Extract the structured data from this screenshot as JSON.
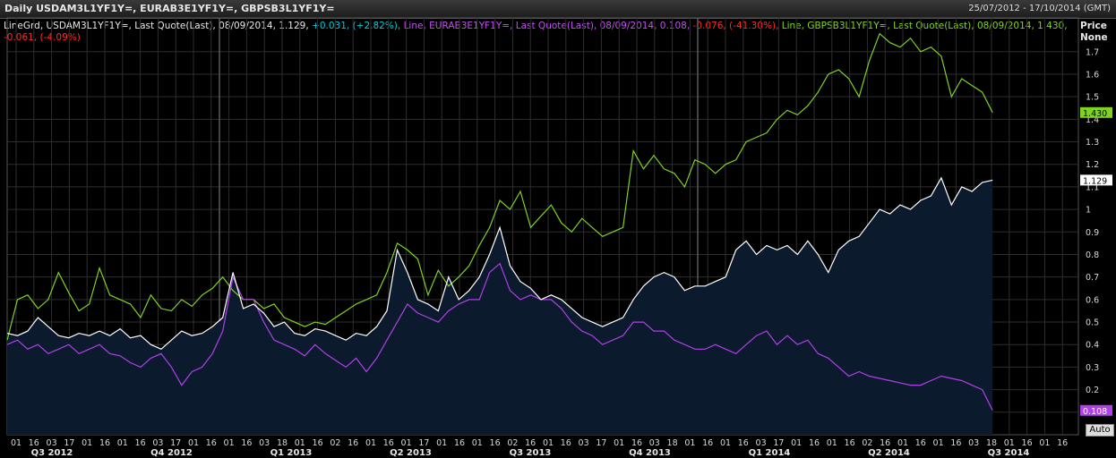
{
  "header": {
    "title": "Daily USDAM3L1YF1Y=, EURAB3E1YF1Y=, GBPSB3L1YF1Y=",
    "date_range": "25/07/2012 - 17/10/2014 (GMT)"
  },
  "legend": {
    "usd": {
      "prefix": "LineGrd, USDAM3L1YF1Y=, Last Quote(Last), 08/09/2014, 1.129, ",
      "chg": "+0.031, (+2.82%), "
    },
    "eur": {
      "prefix": "Line, EURAB3E1YF1Y=, Last Quote(Last), 08/09/2014, 0.108, ",
      "chg": "-0.076, (-41.30%), "
    },
    "gbp": {
      "prefix": "Line, GBPSB3L1YF1Y=, Last Quote(Last), 08/09/2014, 1.430, ",
      "chg": "-0.061, (-4.09%)"
    }
  },
  "price_header": {
    "line1": "Price",
    "line2": "None"
  },
  "auto_button": "Auto",
  "colors": {
    "usd": "#ffffff",
    "eur": "#b040e8",
    "gbp": "#7ed321",
    "usd_fill": "#0c1a2e",
    "pos": "#00c8d8",
    "neg": "#ff2a2a",
    "grid": "#2e2e2e"
  },
  "chart_data": {
    "type": "line",
    "ylim": [
      0.0,
      1.85
    ],
    "y_ticks": [
      0.1,
      0.2,
      0.3,
      0.4,
      0.5,
      0.6,
      0.7,
      0.8,
      0.9,
      1,
      1.1,
      1.2,
      1.3,
      1.4,
      1.5,
      1.6,
      1.7
    ],
    "x_ticks": [
      "01",
      "16",
      "03",
      "17",
      "01",
      "16",
      "01",
      "16",
      "03",
      "17",
      "01",
      "16",
      "01",
      "16",
      "03",
      "18",
      "01",
      "16",
      "02",
      "16",
      "01",
      "16",
      "01",
      "17",
      "01",
      "16",
      "01",
      "16",
      "02",
      "16",
      "01",
      "16",
      "03",
      "17",
      "01",
      "16",
      "03",
      "18",
      "01",
      "16",
      "01",
      "16",
      "03",
      "17",
      "01",
      "16",
      "01",
      "16",
      "02",
      "16",
      "01",
      "16",
      "01",
      "16",
      "03",
      "18",
      "01",
      "16",
      "01",
      "16"
    ],
    "x_index_range": [
      0,
      100
    ],
    "quarters": [
      "Q3 2012",
      "Q4 2012",
      "Q1 2013",
      "Q2 2013",
      "Q3 2013",
      "Q4 2013",
      "Q1 2014",
      "Q2 2014",
      "Q3 2014"
    ],
    "last_labels": {
      "gbp": "1.430",
      "usd": "1.129",
      "eur": "0.108"
    },
    "series": [
      {
        "key": "gbp",
        "x": [
          0,
          1,
          2,
          3,
          4,
          5,
          6,
          7,
          8,
          9,
          10,
          11,
          12,
          13,
          14,
          15,
          16,
          17,
          18,
          19,
          20,
          21,
          22,
          23,
          24,
          25,
          26,
          27,
          28,
          29,
          30,
          31,
          32,
          33,
          34,
          35,
          36,
          37,
          38,
          39,
          40,
          41,
          42,
          43,
          44,
          45,
          46,
          47,
          48,
          49,
          50,
          51,
          52,
          53,
          54,
          55,
          56,
          57,
          58,
          59,
          60,
          61,
          62,
          63,
          64,
          65,
          66,
          67,
          68,
          69,
          70,
          71,
          72,
          73,
          74,
          75,
          76,
          77,
          78,
          79,
          80,
          81,
          82,
          83,
          84,
          85,
          86,
          87,
          88,
          89,
          90,
          91,
          92,
          93,
          94,
          95,
          96
        ],
        "values": [
          0.42,
          0.6,
          0.62,
          0.56,
          0.6,
          0.72,
          0.63,
          0.55,
          0.58,
          0.74,
          0.62,
          0.6,
          0.58,
          0.52,
          0.62,
          0.56,
          0.55,
          0.6,
          0.57,
          0.62,
          0.65,
          0.7,
          0.64,
          0.6,
          0.6,
          0.56,
          0.58,
          0.52,
          0.5,
          0.48,
          0.5,
          0.49,
          0.52,
          0.55,
          0.58,
          0.6,
          0.62,
          0.72,
          0.85,
          0.82,
          0.78,
          0.62,
          0.73,
          0.66,
          0.7,
          0.75,
          0.84,
          0.92,
          1.04,
          1.0,
          1.08,
          0.92,
          0.97,
          1.02,
          0.94,
          0.9,
          0.96,
          0.92,
          0.88,
          0.9,
          0.92,
          1.26,
          1.18,
          1.24,
          1.18,
          1.16,
          1.1,
          1.22,
          1.2,
          1.16,
          1.2,
          1.22,
          1.3,
          1.32,
          1.34,
          1.4,
          1.44,
          1.42,
          1.46,
          1.52,
          1.6,
          1.62,
          1.58,
          1.5,
          1.66,
          1.78,
          1.74,
          1.72,
          1.76,
          1.7,
          1.72,
          1.68,
          1.5,
          1.58,
          1.55,
          1.52,
          1.43
        ]
      },
      {
        "key": "usd",
        "x": [
          0,
          1,
          2,
          3,
          4,
          5,
          6,
          7,
          8,
          9,
          10,
          11,
          12,
          13,
          14,
          15,
          16,
          17,
          18,
          19,
          20,
          21,
          22,
          23,
          24,
          25,
          26,
          27,
          28,
          29,
          30,
          31,
          32,
          33,
          34,
          35,
          36,
          37,
          38,
          39,
          40,
          41,
          42,
          43,
          44,
          45,
          46,
          47,
          48,
          49,
          50,
          51,
          52,
          53,
          54,
          55,
          56,
          57,
          58,
          59,
          60,
          61,
          62,
          63,
          64,
          65,
          66,
          67,
          68,
          69,
          70,
          71,
          72,
          73,
          74,
          75,
          76,
          77,
          78,
          79,
          80,
          81,
          82,
          83,
          84,
          85,
          86,
          87,
          88,
          89,
          90,
          91,
          92,
          93,
          94,
          95,
          96
        ],
        "values": [
          0.45,
          0.44,
          0.46,
          0.52,
          0.48,
          0.44,
          0.43,
          0.45,
          0.44,
          0.46,
          0.44,
          0.47,
          0.43,
          0.44,
          0.4,
          0.38,
          0.42,
          0.46,
          0.44,
          0.45,
          0.48,
          0.52,
          0.72,
          0.56,
          0.58,
          0.54,
          0.48,
          0.5,
          0.45,
          0.44,
          0.47,
          0.46,
          0.44,
          0.42,
          0.45,
          0.44,
          0.48,
          0.55,
          0.82,
          0.72,
          0.6,
          0.58,
          0.55,
          0.7,
          0.6,
          0.64,
          0.7,
          0.8,
          0.92,
          0.75,
          0.68,
          0.65,
          0.6,
          0.62,
          0.6,
          0.56,
          0.52,
          0.5,
          0.48,
          0.5,
          0.52,
          0.6,
          0.66,
          0.7,
          0.72,
          0.7,
          0.64,
          0.66,
          0.66,
          0.68,
          0.7,
          0.82,
          0.86,
          0.8,
          0.84,
          0.82,
          0.84,
          0.8,
          0.86,
          0.8,
          0.72,
          0.82,
          0.86,
          0.88,
          0.94,
          1.0,
          0.98,
          1.02,
          1.0,
          1.04,
          1.06,
          1.14,
          1.02,
          1.1,
          1.08,
          1.12,
          1.13
        ]
      },
      {
        "key": "eur",
        "x": [
          0,
          1,
          2,
          3,
          4,
          5,
          6,
          7,
          8,
          9,
          10,
          11,
          12,
          13,
          14,
          15,
          16,
          17,
          18,
          19,
          20,
          21,
          22,
          23,
          24,
          25,
          26,
          27,
          28,
          29,
          30,
          31,
          32,
          33,
          34,
          35,
          36,
          37,
          38,
          39,
          40,
          41,
          42,
          43,
          44,
          45,
          46,
          47,
          48,
          49,
          50,
          51,
          52,
          53,
          54,
          55,
          56,
          57,
          58,
          59,
          60,
          61,
          62,
          63,
          64,
          65,
          66,
          67,
          68,
          69,
          70,
          71,
          72,
          73,
          74,
          75,
          76,
          77,
          78,
          79,
          80,
          81,
          82,
          83,
          84,
          85,
          86,
          87,
          88,
          89,
          90,
          91,
          92,
          93,
          94,
          95,
          96
        ],
        "values": [
          0.4,
          0.42,
          0.38,
          0.4,
          0.36,
          0.38,
          0.4,
          0.36,
          0.38,
          0.4,
          0.36,
          0.35,
          0.32,
          0.3,
          0.34,
          0.36,
          0.3,
          0.22,
          0.28,
          0.3,
          0.36,
          0.46,
          0.7,
          0.6,
          0.6,
          0.5,
          0.42,
          0.4,
          0.38,
          0.35,
          0.4,
          0.36,
          0.33,
          0.3,
          0.34,
          0.28,
          0.34,
          0.42,
          0.5,
          0.58,
          0.54,
          0.52,
          0.5,
          0.55,
          0.58,
          0.6,
          0.6,
          0.72,
          0.76,
          0.64,
          0.6,
          0.62,
          0.6,
          0.6,
          0.56,
          0.5,
          0.46,
          0.44,
          0.4,
          0.42,
          0.44,
          0.5,
          0.5,
          0.46,
          0.46,
          0.42,
          0.4,
          0.38,
          0.38,
          0.4,
          0.38,
          0.36,
          0.4,
          0.44,
          0.46,
          0.4,
          0.44,
          0.4,
          0.42,
          0.36,
          0.34,
          0.3,
          0.26,
          0.28,
          0.26,
          0.25,
          0.24,
          0.23,
          0.22,
          0.22,
          0.24,
          0.26,
          0.25,
          0.24,
          0.22,
          0.2,
          0.108
        ]
      }
    ]
  }
}
